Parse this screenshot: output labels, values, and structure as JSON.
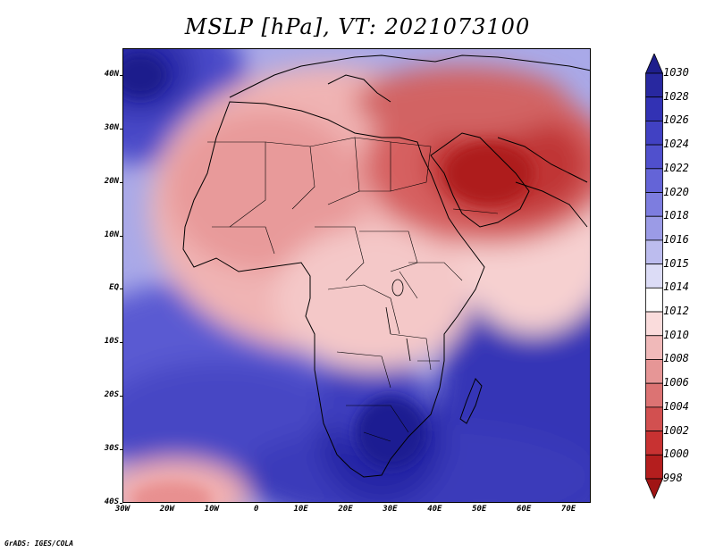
{
  "title": "MSLP [hPa], VT: 2021073100",
  "credit": "GrADS: IGES/COLA",
  "map": {
    "lon_range": [
      -30,
      75
    ],
    "lat_range": [
      -40,
      45
    ],
    "lat_ticks": [
      {
        "value": 40,
        "label": "40N"
      },
      {
        "value": 30,
        "label": "30N"
      },
      {
        "value": 20,
        "label": "20N"
      },
      {
        "value": 10,
        "label": "10N"
      },
      {
        "value": 0,
        "label": "EQ"
      },
      {
        "value": -10,
        "label": "10S"
      },
      {
        "value": -20,
        "label": "20S"
      },
      {
        "value": -30,
        "label": "30S"
      },
      {
        "value": -40,
        "label": "40S"
      }
    ],
    "lon_ticks": [
      {
        "value": -30,
        "label": "30W"
      },
      {
        "value": -20,
        "label": "20W"
      },
      {
        "value": -10,
        "label": "10W"
      },
      {
        "value": 0,
        "label": "0"
      },
      {
        "value": 10,
        "label": "10E"
      },
      {
        "value": 20,
        "label": "20E"
      },
      {
        "value": 30,
        "label": "30E"
      },
      {
        "value": 40,
        "label": "40E"
      },
      {
        "value": 50,
        "label": "50E"
      },
      {
        "value": 60,
        "label": "60E"
      },
      {
        "value": 70,
        "label": "70E"
      }
    ]
  },
  "colorbar": {
    "levels": [
      "1030",
      "1028",
      "1026",
      "1024",
      "1022",
      "1020",
      "1018",
      "1016",
      "1015",
      "1014",
      "1012",
      "1010",
      "1008",
      "1006",
      "1004",
      "1002",
      "1000",
      "998"
    ],
    "colors": [
      "#1e1e8c",
      "#2828a0",
      "#3232b4",
      "#4141c3",
      "#5050cd",
      "#6464d7",
      "#7d7ddf",
      "#9b9be6",
      "#bcbcee",
      "#dcdcf6",
      "#ffffff",
      "#fadcdc",
      "#f0b9b9",
      "#e69696",
      "#dc7373",
      "#d25050",
      "#c83232",
      "#b41e1e",
      "#a01414"
    ]
  },
  "pressure_field": [
    {
      "lon": -25,
      "lat": 38,
      "hPa": 1028
    },
    {
      "lon": -22,
      "lat": 30,
      "hPa": 1024
    },
    {
      "lon": -25,
      "lat": 15,
      "hPa": 1018
    },
    {
      "lon": -25,
      "lat": 0,
      "hPa": 1016
    },
    {
      "lon": -20,
      "lat": -25,
      "hPa": 1022
    },
    {
      "lon": -25,
      "lat": -37,
      "hPa": 1010
    },
    {
      "lon": -18,
      "lat": -39,
      "hPa": 1008
    },
    {
      "lon": -5,
      "lat": 22,
      "hPa": 1008
    },
    {
      "lon": 10,
      "lat": 25,
      "hPa": 1008
    },
    {
      "lon": 25,
      "lat": 25,
      "hPa": 1006
    },
    {
      "lon": 40,
      "lat": 32,
      "hPa": 1002
    },
    {
      "lon": 48,
      "lat": 25,
      "hPa": 1000
    },
    {
      "lon": 62,
      "lat": 28,
      "hPa": 1000
    },
    {
      "lon": 15,
      "lat": 5,
      "hPa": 1010
    },
    {
      "lon": 28,
      "lat": -5,
      "hPa": 1010
    },
    {
      "lon": 30,
      "lat": -20,
      "hPa": 1024
    },
    {
      "lon": 25,
      "lat": -28,
      "hPa": 1030
    },
    {
      "lon": 45,
      "lat": -25,
      "hPa": 1022
    },
    {
      "lon": 70,
      "lat": -25,
      "hPa": 1028
    },
    {
      "lon": 65,
      "lat": 0,
      "hPa": 1012
    },
    {
      "lon": 5,
      "lat": -15,
      "hPa": 1016
    }
  ]
}
